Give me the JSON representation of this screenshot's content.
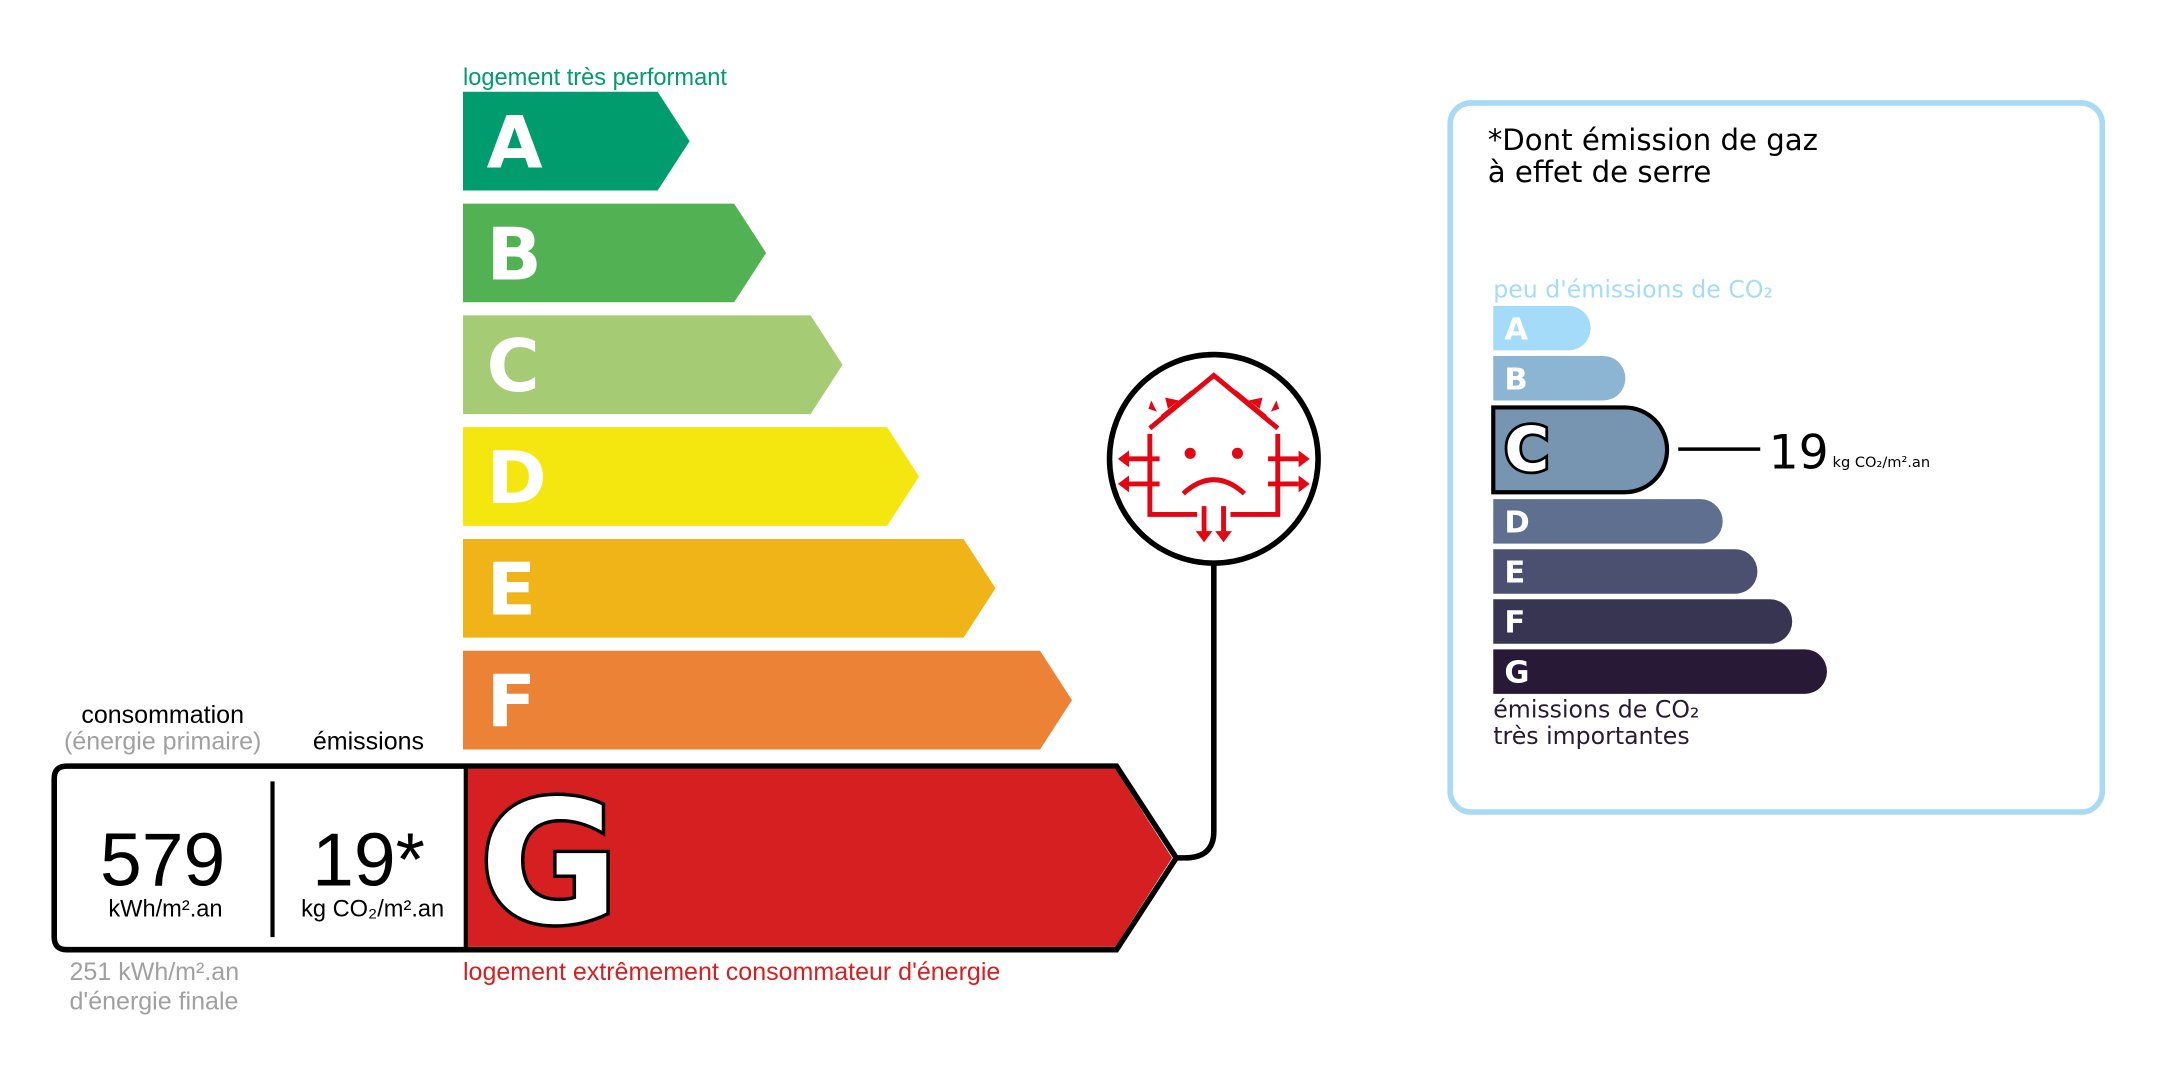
{
  "energy_label": {
    "top_label": "logement très performant",
    "bottom_label": "logement extrêmement consommateur d'énergie",
    "classes": [
      {
        "letter": "A",
        "color": "#009c6d"
      },
      {
        "letter": "B",
        "color": "#52b153"
      },
      {
        "letter": "C",
        "color": "#a5cc74"
      },
      {
        "letter": "D",
        "color": "#f4e70f"
      },
      {
        "letter": "E",
        "color": "#f0b419"
      },
      {
        "letter": "F",
        "color": "#eb8235"
      },
      {
        "letter": "G",
        "color": "#d61f21"
      }
    ],
    "current_class": "G",
    "consumption_header": "consommation",
    "consumption_subheader": "(énergie primaire)",
    "emissions_header": "émissions",
    "consumption_value": "579",
    "consumption_unit": "kWh/m².an",
    "emissions_value": "19*",
    "emissions_unit": "kg CO₂/m².an",
    "final_energy_value": "251 kWh/m².an",
    "final_energy_label": "d'énergie finale",
    "icon": "house-heat-loss-sad-icon"
  },
  "ghg_label": {
    "title_line1": "*Dont émission de gaz",
    "title_line2": "à effet de serre",
    "top_label": "peu d'émissions de CO₂",
    "bottom_label_line1": "émissions de CO₂",
    "bottom_label_line2": "très importantes",
    "classes": [
      {
        "letter": "A",
        "color": "#a4dbf8"
      },
      {
        "letter": "B",
        "color": "#8cb4d3"
      },
      {
        "letter": "C",
        "color": "#7794b1"
      },
      {
        "letter": "D",
        "color": "#5f6f8f"
      },
      {
        "letter": "E",
        "color": "#4b5070"
      },
      {
        "letter": "F",
        "color": "#383553"
      },
      {
        "letter": "G",
        "color": "#281a36"
      }
    ],
    "current_class": "C",
    "value": "19",
    "unit": "kg CO₂/m².an",
    "border_color": "#a8daf5"
  }
}
